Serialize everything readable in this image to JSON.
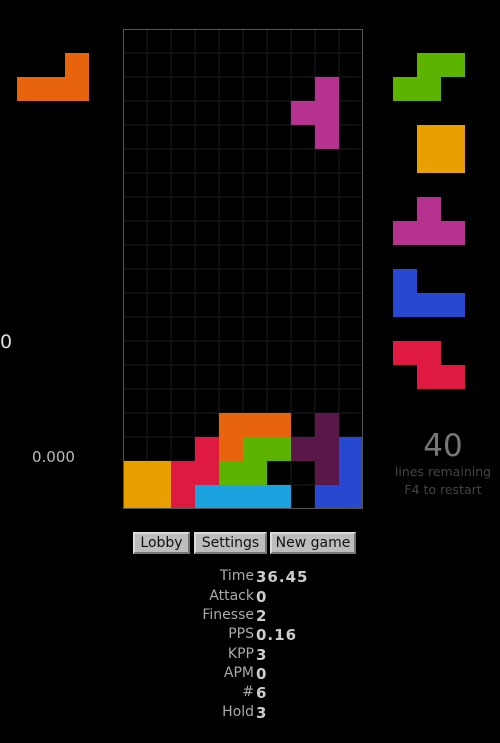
{
  "colors": {
    "L": "#e8640c",
    "O": "#e8a000",
    "S": "#5cb400",
    "T": "#b5328f",
    "J": "#2748d0",
    "Z": "#df1a41",
    "I": "#1ba2df",
    "garbage_T": "#5a1848",
    "grid_line": "#1b1b1b",
    "empty": "#000000"
  },
  "hold_piece": "L",
  "hold_count": "0",
  "pace": "0.000",
  "next_queue": [
    "S",
    "O",
    "T",
    "J",
    "Z"
  ],
  "board": {
    "cols": 10,
    "rows": 20,
    "active_piece": "T",
    "active_cells": [
      [
        8,
        2
      ],
      [
        7,
        3
      ],
      [
        8,
        3
      ],
      [
        8,
        4
      ]
    ],
    "rows_filled": {
      "16": [
        "",
        "",
        "",
        "",
        "L",
        "L",
        "L",
        "",
        "t",
        ""
      ],
      "17": [
        "",
        "",
        "",
        "Z",
        "L",
        "S",
        "S",
        "t",
        "t",
        "J"
      ],
      "18": [
        "O",
        "O",
        "Z",
        "Z",
        "S",
        "S",
        "",
        "",
        "t",
        "J"
      ],
      "19": [
        "O",
        "O",
        "Z",
        "I",
        "I",
        "I",
        "I",
        "",
        "J",
        "J"
      ]
    }
  },
  "lines": {
    "remaining": "40",
    "label": "lines remaining",
    "restart": "F4 to restart"
  },
  "buttons": {
    "lobby": "Lobby",
    "settings": "Settings",
    "new_game": "New game"
  },
  "stats": [
    {
      "label": "Time",
      "value": "36.45"
    },
    {
      "label": "Attack",
      "value": "0"
    },
    {
      "label": "Finesse",
      "value": "2"
    },
    {
      "label": "PPS",
      "value": "0.16"
    },
    {
      "label": "KPP",
      "value": "3"
    },
    {
      "label": "APM",
      "value": "0"
    },
    {
      "label": "#",
      "value": "6"
    },
    {
      "label": "Hold",
      "value": "3"
    }
  ]
}
